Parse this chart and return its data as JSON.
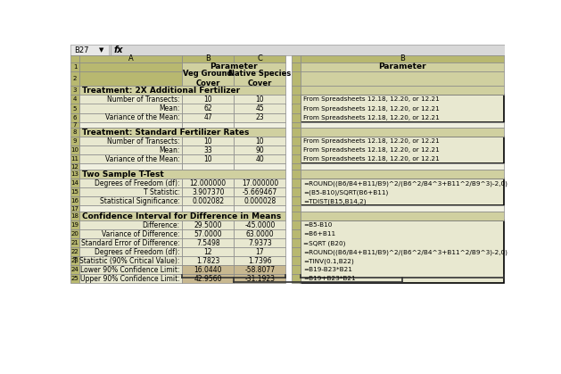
{
  "left_rows": [
    {
      "row_num": "1",
      "label": "",
      "b": "",
      "c": "",
      "type": "header1"
    },
    {
      "row_num": "2",
      "label": "",
      "b": "Veg Ground\nCover",
      "c": "Native Species\nCover",
      "type": "header2"
    },
    {
      "row_num": "3",
      "label": "Treatment: 2X Additional Fertilizer",
      "b": "",
      "c": "",
      "type": "section"
    },
    {
      "row_num": "4",
      "label": "Number of Transects:",
      "b": "10",
      "c": "10",
      "type": "data"
    },
    {
      "row_num": "5",
      "label": "Mean:",
      "b": "62",
      "c": "45",
      "type": "data"
    },
    {
      "row_num": "6",
      "label": "Variance of the Mean:",
      "b": "47",
      "c": "23",
      "type": "data"
    },
    {
      "row_num": "7",
      "label": "",
      "b": "",
      "c": "",
      "type": "empty"
    },
    {
      "row_num": "8",
      "label": "Treatment: Standard Fertilizer Rates",
      "b": "",
      "c": "",
      "type": "section"
    },
    {
      "row_num": "9",
      "label": "Number of Transects:",
      "b": "10",
      "c": "10",
      "type": "data"
    },
    {
      "row_num": "10",
      "label": "Mean:",
      "b": "33",
      "c": "90",
      "type": "data"
    },
    {
      "row_num": "11",
      "label": "Variance of the Mean:",
      "b": "10",
      "c": "40",
      "type": "data"
    },
    {
      "row_num": "12",
      "label": "",
      "b": "",
      "c": "",
      "type": "empty"
    },
    {
      "row_num": "13",
      "label": "Two Sample T-Test",
      "b": "",
      "c": "",
      "type": "section"
    },
    {
      "row_num": "14",
      "label": "Degrees of Freedom (df):",
      "b": "12.000000",
      "c": "17.000000",
      "type": "data"
    },
    {
      "row_num": "15",
      "label": "T Statistic:",
      "b": "3.907370",
      "c": "-5.669467",
      "type": "data"
    },
    {
      "row_num": "16",
      "label": "Statistical Significance:",
      "b": "0.002082",
      "c": "0.000028",
      "type": "data"
    },
    {
      "row_num": "17",
      "label": "",
      "b": "",
      "c": "",
      "type": "empty"
    },
    {
      "row_num": "18",
      "label": "Confidence Interval for Difference in Means",
      "b": "",
      "c": "",
      "type": "section"
    },
    {
      "row_num": "19",
      "label": "Difference:",
      "b": "29.5000",
      "c": "-45.0000",
      "type": "data"
    },
    {
      "row_num": "20",
      "label": "Variance of Difference:",
      "b": "57.0000",
      "c": "63.0000",
      "type": "data"
    },
    {
      "row_num": "21",
      "label": "Standard Error of Difference:",
      "b": "7.5498",
      "c": "7.9373",
      "type": "data"
    },
    {
      "row_num": "22",
      "label": "Degrees of Freedom (df):",
      "b": "12",
      "c": "17",
      "type": "data"
    },
    {
      "row_num": "23",
      "label": "T Statistic (90% Critical Value):",
      "b": "1.7823",
      "c": "1.7396",
      "type": "data"
    },
    {
      "row_num": "24",
      "label": "Lower 90% Confidence Limit:",
      "b": "16.0440",
      "c": "-58.8077",
      "type": "data_hl"
    },
    {
      "row_num": "25",
      "label": "Upper 90% Confidence Limit:",
      "b": "42.9560",
      "c": "-31.1923",
      "type": "data_hl"
    }
  ],
  "right_rows": [
    {
      "b": "",
      "type": "header1"
    },
    {
      "b": "",
      "type": "header2"
    },
    {
      "b": "",
      "type": "section"
    },
    {
      "b": "From Spreadsheets 12.18, 12.20, or 12.21",
      "type": "data"
    },
    {
      "b": "From Spreadsheets 12.18, 12.20, or 12.21",
      "type": "data"
    },
    {
      "b": "From Spreadsheets 12.18, 12.20, or 12.21",
      "type": "data"
    },
    {
      "b": "",
      "type": "empty"
    },
    {
      "b": "",
      "type": "section"
    },
    {
      "b": "From Spreadsheets 12.18, 12.20, or 12.21",
      "type": "data"
    },
    {
      "b": "From Spreadsheets 12.18, 12.20, or 12.21",
      "type": "data"
    },
    {
      "b": "From Spreadsheets 12.18, 12.20, or 12.21",
      "type": "data"
    },
    {
      "b": "",
      "type": "empty"
    },
    {
      "b": "",
      "type": "section"
    },
    {
      "b": "=ROUND((B6/B4+B11/B9)^2/(B6^2/B4^3+B11^2/B9^3)-2,0)",
      "type": "data"
    },
    {
      "b": "=(B5-B10)/SQRT(B6+B11)",
      "type": "data"
    },
    {
      "b": "=TDIST(B15,B14,2)",
      "type": "data"
    },
    {
      "b": "",
      "type": "empty"
    },
    {
      "b": "",
      "type": "section"
    },
    {
      "b": "=B5-B10",
      "type": "data"
    },
    {
      "b": "=B6+B11",
      "type": "data"
    },
    {
      "b": "=SQRT (B20)",
      "type": "data"
    },
    {
      "b": "=ROUND((B6/B4+B11/B9)^2/(B6^2/B4^3+B11^2/B9^3)-2,0)",
      "type": "data"
    },
    {
      "b": "=TINV(0.1,B22)",
      "type": "data"
    },
    {
      "b": "=B19-B23*B21",
      "type": "data_hl"
    },
    {
      "b": "=B19+B23*B21",
      "type": "data_hl"
    }
  ],
  "row_groups_right": {
    "group1": [
      3,
      4,
      5
    ],
    "group2": [
      8,
      9,
      10
    ],
    "group3": [
      13,
      14,
      15
    ],
    "group4": [
      18,
      19,
      20,
      21,
      22,
      23,
      24
    ]
  },
  "colors": {
    "row_num_bg": "#b8b870",
    "col_hdr_bg": "#b8b870",
    "param_header_bg": "#d0d0a0",
    "section_bg": "#d0d0a0",
    "label_bg": "#e8e8d0",
    "data_bc_bg": "#e8e8d0",
    "highlight_bg": "#c8b890",
    "empty_bg": "#f0f0e0",
    "right_data_bg": "#e8e8d0",
    "right_group_border": "#000000",
    "border_light": "#aaaaaa",
    "border_dark": "#666666"
  }
}
